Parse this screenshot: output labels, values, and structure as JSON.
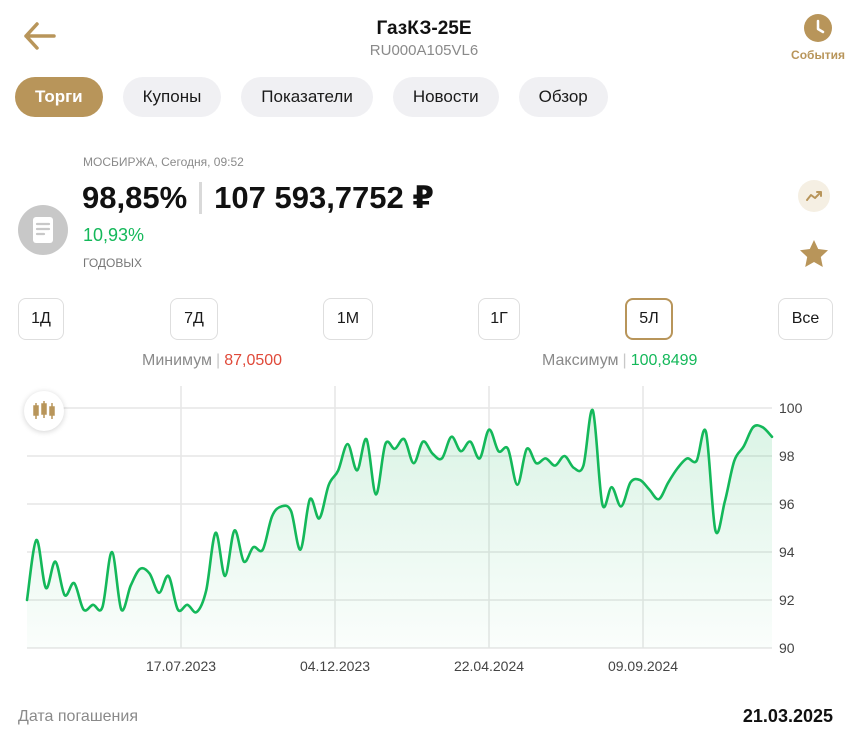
{
  "header": {
    "title": "ГазКЗ-25Е",
    "subtitle": "RU000A105VL6",
    "events_label": "События"
  },
  "tabs": [
    {
      "label": "Торги",
      "active": true
    },
    {
      "label": "Купоны",
      "active": false
    },
    {
      "label": "Показатели",
      "active": false
    },
    {
      "label": "Новости",
      "active": false
    },
    {
      "label": "Обзор",
      "active": false
    }
  ],
  "quote": {
    "exchange": "МОСБИРЖА, Сегодня, 09:52",
    "price_percent": "98,85%",
    "price_rub": "107 593,7752 ₽",
    "yield": "10,93%",
    "yield_label": "ГОДОВЫХ"
  },
  "periods": [
    {
      "label": "1Д",
      "active": false
    },
    {
      "label": "7Д",
      "active": false
    },
    {
      "label": "1М",
      "active": false
    },
    {
      "label": "1Г",
      "active": false
    },
    {
      "label": "5Л",
      "active": true
    },
    {
      "label": "Все",
      "active": false
    }
  ],
  "range": {
    "min_label": "Минимум",
    "min_value": "87,0500",
    "max_label": "Максимум",
    "max_value": "100,8499"
  },
  "maturity": {
    "label": "Дата погашения",
    "value": "21.03.2025"
  },
  "colors": {
    "accent": "#b8955a",
    "line": "#14b85a",
    "negative": "#e04a3a"
  },
  "chart_data": {
    "type": "area",
    "ylim": [
      90,
      100
    ],
    "yticks": [
      100,
      98,
      96,
      94,
      92,
      90
    ],
    "xticks": [
      "17.07.2023",
      "04.12.2023",
      "22.04.2024",
      "09.09.2024"
    ],
    "series": [
      {
        "values": [
          92.0,
          94.5,
          92.5,
          93.6,
          92.2,
          92.7,
          91.6,
          91.8,
          91.7,
          94.0,
          91.6,
          92.6,
          93.3,
          93.1,
          92.3,
          93.0,
          91.6,
          91.8,
          91.5,
          92.4,
          94.8,
          93.0,
          94.9,
          93.6,
          94.2,
          94.1,
          95.5,
          95.9,
          95.7,
          94.1,
          96.2,
          95.4,
          96.8,
          97.4,
          98.5,
          97.4,
          98.7,
          96.4,
          98.5,
          98.3,
          98.7,
          97.7,
          98.6,
          98.1,
          97.9,
          98.8,
          98.2,
          98.6,
          97.9,
          99.1,
          98.2,
          98.3,
          96.8,
          98.3,
          97.7,
          97.9,
          97.6,
          98.0,
          97.5,
          97.6,
          99.9,
          96.0,
          96.7,
          95.9,
          96.9,
          97.0,
          96.6,
          96.2,
          96.9,
          97.5,
          97.9,
          97.8,
          99.0,
          94.9,
          96.1,
          97.8,
          98.4,
          99.2,
          99.2,
          98.8
        ]
      }
    ]
  }
}
